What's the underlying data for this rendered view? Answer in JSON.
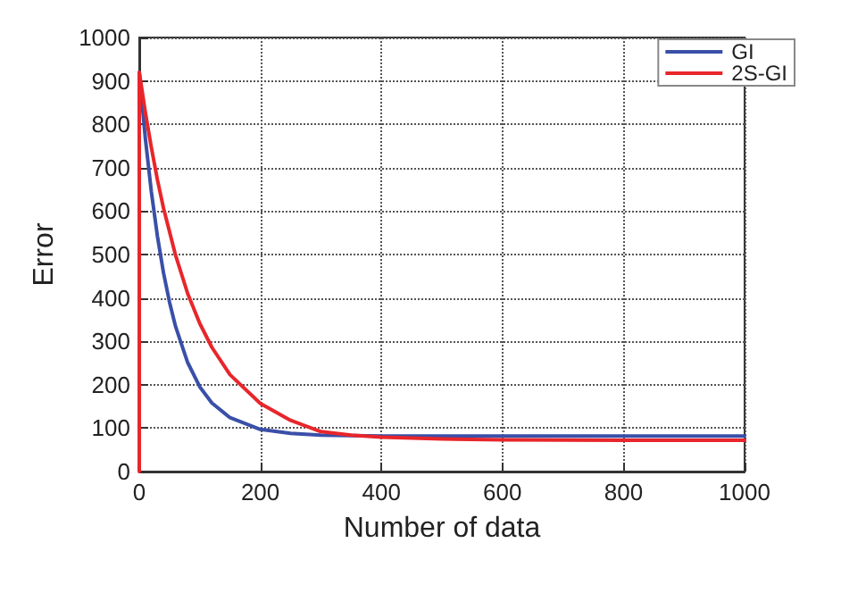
{
  "chart_data": {
    "type": "line",
    "xlabel": "Number of data",
    "ylabel": "Error",
    "xlim": [
      0,
      1000
    ],
    "xticks": [
      0,
      200,
      400,
      600,
      800,
      1000
    ],
    "ylim": [
      0,
      1000
    ],
    "yticks": [
      0,
      100,
      200,
      300,
      400,
      500,
      600,
      700,
      800,
      900,
      1000
    ],
    "grid": true,
    "line_style": "solid",
    "marker": "none",
    "legend": "top right",
    "series": [
      {
        "name": "GI",
        "color": "#3a4fa8",
        "x": [
          0,
          10,
          20,
          30,
          40,
          50,
          60,
          80,
          100,
          120,
          150,
          200,
          250,
          300,
          400,
          600,
          1000
        ],
        "values": [
          920,
          768,
          644,
          542,
          458,
          390,
          334,
          251,
          195,
          158,
          124,
          97,
          88,
          84,
          82,
          82,
          82
        ]
      },
      {
        "name": "2S-GI",
        "color": "#e8262b",
        "x": [
          0,
          0,
          10,
          20,
          30,
          40,
          60,
          80,
          100,
          120,
          150,
          200,
          250,
          300,
          350,
          400,
          500,
          600,
          800,
          1000
        ],
        "values": [
          0,
          920,
          828,
          746,
          672,
          607,
          498,
          410,
          341,
          286,
          223,
          157,
          118,
          92,
          84,
          79,
          75,
          73,
          72,
          72
        ]
      }
    ]
  }
}
